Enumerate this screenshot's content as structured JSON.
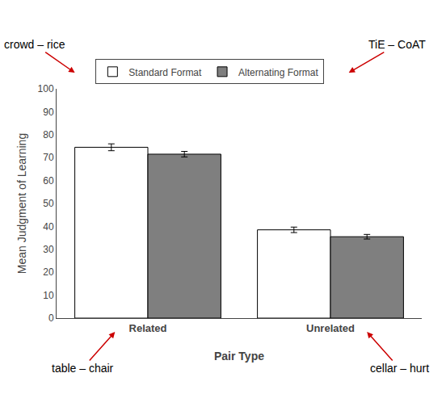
{
  "chart_data": {
    "type": "bar",
    "categories": [
      "Related",
      "Unrelated"
    ],
    "series": [
      {
        "name": "Standard Format",
        "color": "#ffffff",
        "values": [
          74.5,
          38.5
        ],
        "errors": [
          1.5,
          1.2
        ]
      },
      {
        "name": "Alternating Format",
        "color": "#7f7f7f",
        "values": [
          71.5,
          35.5
        ],
        "errors": [
          1.2,
          1.0
        ]
      }
    ],
    "xlabel": "Pair Type",
    "ylabel": "Mean Judgment of Learning",
    "ylim": [
      0,
      100
    ],
    "yticks": [
      0,
      10,
      20,
      30,
      40,
      50,
      60,
      70,
      80,
      90,
      100
    ],
    "grid": false,
    "legend": "top",
    "annotations": [
      {
        "text": "crowd – rice",
        "color": "#cc0000"
      },
      {
        "text": "TiE – CoAT",
        "color": "#cc0000"
      },
      {
        "text": "table – chair",
        "color": "#cc0000"
      },
      {
        "text": "cellar – hurt",
        "color": "#cc0000"
      }
    ]
  }
}
